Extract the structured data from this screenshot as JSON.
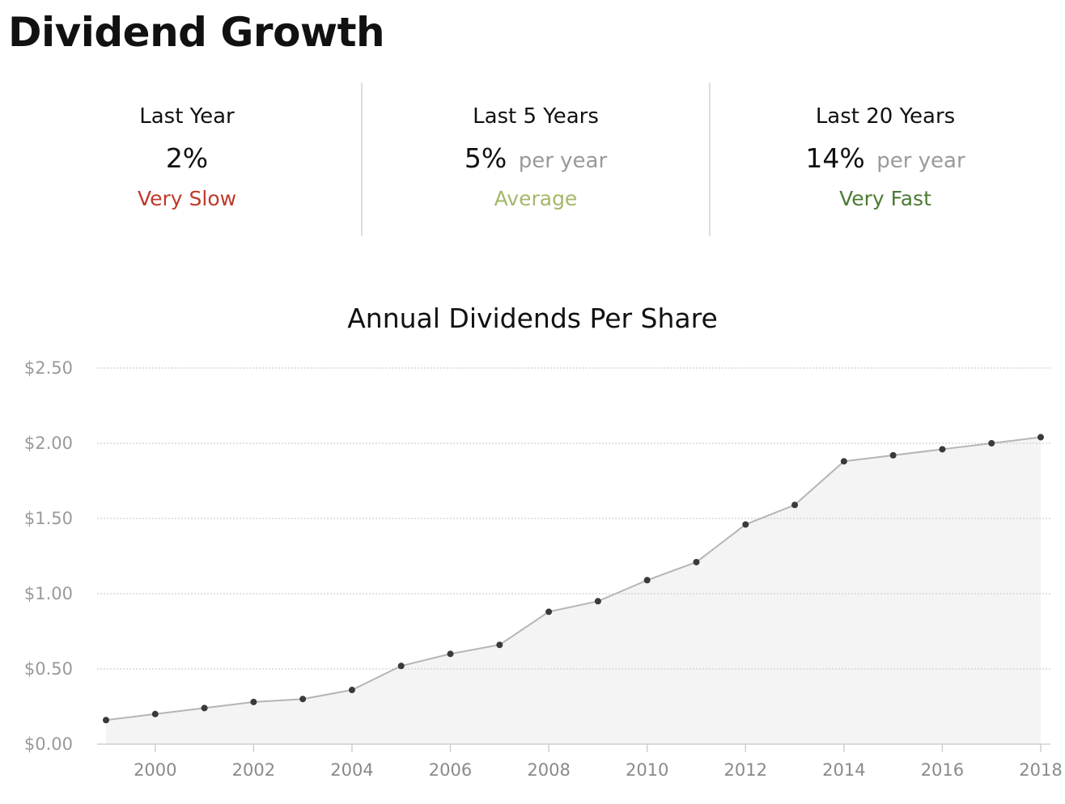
{
  "header": {
    "title": "Dividend Growth"
  },
  "stats": [
    {
      "label": "Last Year",
      "value": "2%",
      "unit": "",
      "rating": "Very Slow",
      "rating_color": "#c0392b"
    },
    {
      "label": "Last 5 Years",
      "value": "5%",
      "unit": "per year",
      "rating": "Average",
      "rating_color": "#a4b86a"
    },
    {
      "label": "Last 20 Years",
      "value": "14%",
      "unit": "per year",
      "rating": "Very Fast",
      "rating_color": "#4e7a34"
    }
  ],
  "chart_data": {
    "type": "area",
    "title": "Annual Dividends Per Share",
    "xlabel": "",
    "ylabel": "",
    "x": [
      1999,
      2000,
      2001,
      2002,
      2003,
      2004,
      2005,
      2006,
      2007,
      2008,
      2009,
      2010,
      2011,
      2012,
      2013,
      2014,
      2015,
      2016,
      2017,
      2018
    ],
    "series": [
      {
        "values": [
          0.16,
          0.2,
          0.24,
          0.28,
          0.3,
          0.36,
          0.52,
          0.6,
          0.66,
          0.88,
          0.95,
          1.09,
          1.21,
          1.46,
          1.59,
          1.88,
          1.92,
          1.96,
          2.0,
          2.04
        ]
      }
    ],
    "xlim": [
      1999,
      2018
    ],
    "ylim": [
      0,
      2.5
    ],
    "y_ticks": [
      "$0.00",
      "$0.50",
      "$1.00",
      "$1.50",
      "$2.00",
      "$2.50"
    ],
    "x_ticks": [
      "2000",
      "2002",
      "2004",
      "2006",
      "2008",
      "2010",
      "2012",
      "2014",
      "2016",
      "2018"
    ],
    "grid": true,
    "legend": "none",
    "colors": {
      "line": "#b5b5b5",
      "fill": "#f4f4f4",
      "point": "#3a3a3a",
      "grid": "#cfcfcf",
      "axis": "#d0d0d0"
    }
  }
}
